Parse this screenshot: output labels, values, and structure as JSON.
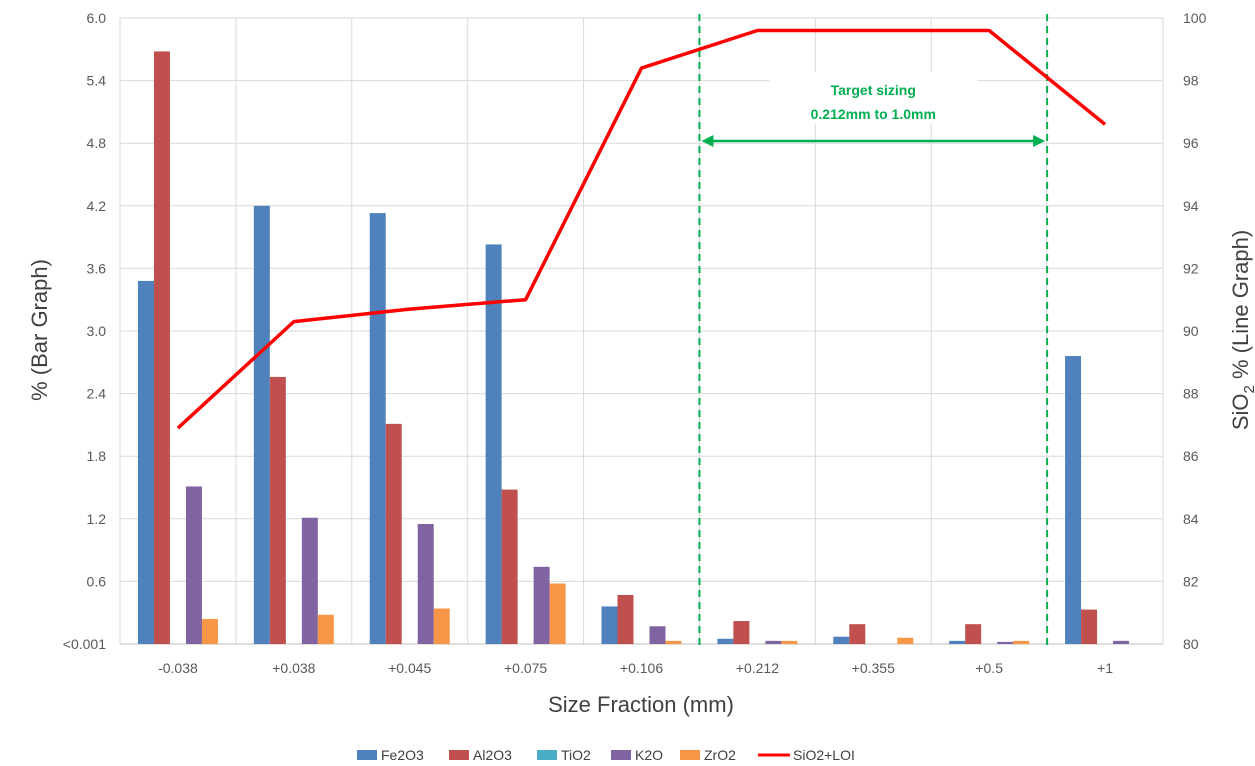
{
  "chart_data": {
    "type": "bar",
    "xlabel": "Size Fraction (mm)",
    "ylabel_left": "% (Bar Graph)",
    "ylabel_right_parts": [
      "SiO",
      "2",
      " %  (Line Graph)"
    ],
    "categories": [
      "-0.038",
      "+0.038",
      "+0.045",
      "+0.075",
      "+0.106",
      "+0.212",
      "+0.355",
      "+0.5",
      "+1"
    ],
    "ylim_left": [
      0,
      6.0
    ],
    "yticks_left": [
      "<0.001",
      "0.6",
      "1.2",
      "1.8",
      "2.4",
      "3.0",
      "3.6",
      "4.2",
      "4.8",
      "5.4",
      "6.0"
    ],
    "ylim_right": [
      80,
      100
    ],
    "yticks_right": [
      "80",
      "82",
      "84",
      "86",
      "88",
      "90",
      "92",
      "94",
      "96",
      "98",
      "100"
    ],
    "grid": true,
    "legend_position": "bottom",
    "series": [
      {
        "name": "Fe2O3",
        "type": "bar",
        "axis": "left",
        "color": "#4f81bd",
        "values": [
          3.48,
          4.2,
          4.13,
          3.83,
          0.36,
          0.05,
          0.07,
          0.03,
          2.76
        ]
      },
      {
        "name": "Al2O3",
        "type": "bar",
        "axis": "left",
        "color": "#c0504d",
        "values": [
          5.68,
          2.56,
          2.11,
          1.48,
          0.47,
          0.22,
          0.19,
          0.19,
          0.33
        ]
      },
      {
        "name": "TiO2",
        "type": "bar",
        "axis": "left",
        "color": "#4bacc6",
        "values": [
          0,
          0,
          0,
          0,
          0,
          0,
          0,
          0,
          0
        ]
      },
      {
        "name": "K2O",
        "type": "bar",
        "axis": "left",
        "color": "#8064a2",
        "values": [
          1.51,
          1.21,
          1.15,
          0.74,
          0.17,
          0.03,
          0.0,
          0.02,
          0.03
        ]
      },
      {
        "name": "ZrO2",
        "type": "bar",
        "axis": "left",
        "color": "#f79646",
        "values": [
          0.24,
          0.28,
          0.34,
          0.58,
          0.03,
          0.03,
          0.06,
          0.03,
          0.0
        ]
      },
      {
        "name": "SiO2+LOI",
        "type": "line",
        "axis": "right",
        "color": "#ff0000",
        "values": [
          86.9,
          90.3,
          90.7,
          91.0,
          98.4,
          99.6,
          99.6,
          99.6,
          96.6
        ]
      }
    ],
    "annotations": {
      "target_text_line1": "Target sizing",
      "target_text_line2": "0.212mm to 1.0mm",
      "target_range_start": "+0.212",
      "target_range_end": "+1",
      "color": "#00b050"
    }
  }
}
